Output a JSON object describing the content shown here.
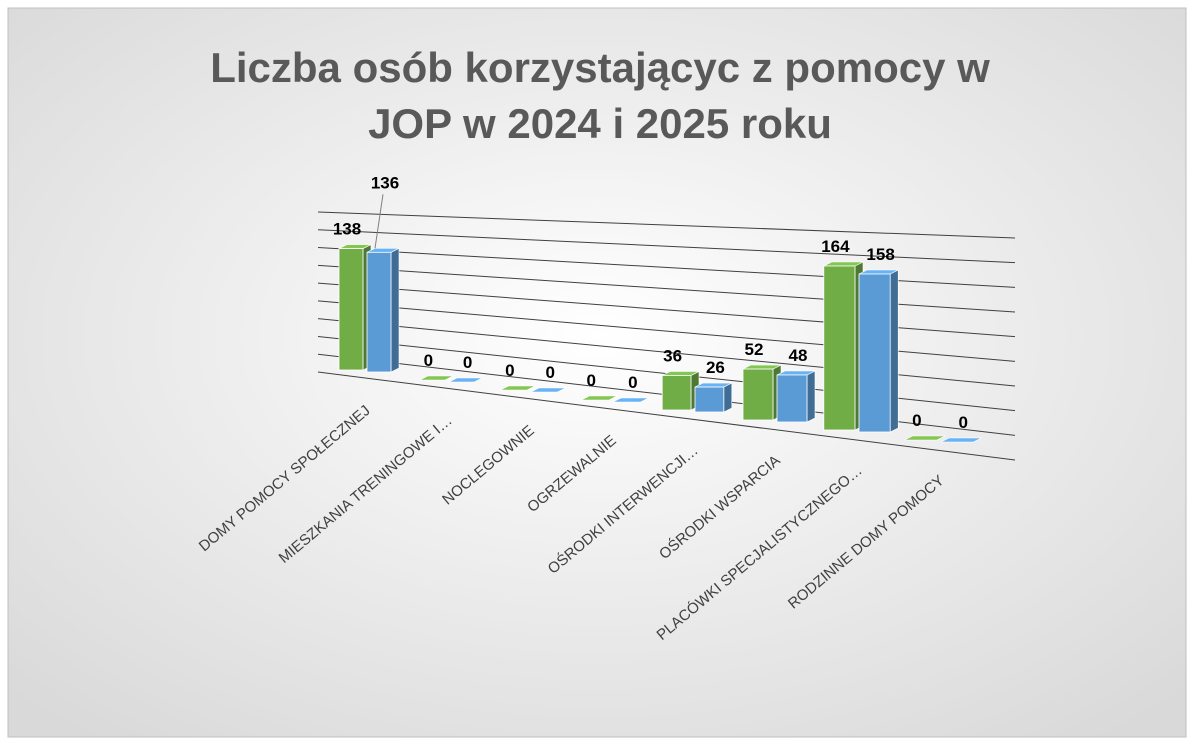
{
  "chart_data": {
    "type": "bar3d",
    "title": "Liczba osób korzystającyc z pomocy w JOP w 2024 i 2025 roku",
    "categories": [
      "DOMY POMOCY SPOŁECZNEJ",
      "MIESZKANIA TRENINGOWE I…",
      "NOCLEGOWNIE",
      "OGRZEWALNIE",
      "OŚRODKI INTERWENCJI…",
      "OŚRODKI WSPARCIA",
      "PLACÓWKI SPECJALISTYCZNEGO…",
      "RODZINNE DOMY POMOCY"
    ],
    "series": [
      {
        "color": "#70ad47",
        "values": [
          138,
          0,
          0,
          0,
          36,
          52,
          164,
          0
        ]
      },
      {
        "color": "#5b9bd5",
        "values": [
          136,
          0,
          0,
          0,
          26,
          48,
          158,
          0
        ]
      }
    ],
    "ylim": [
      0,
      180
    ],
    "yticks": [
      0,
      20,
      40,
      60,
      80,
      100,
      120,
      140,
      160,
      180
    ],
    "grid": true
  }
}
